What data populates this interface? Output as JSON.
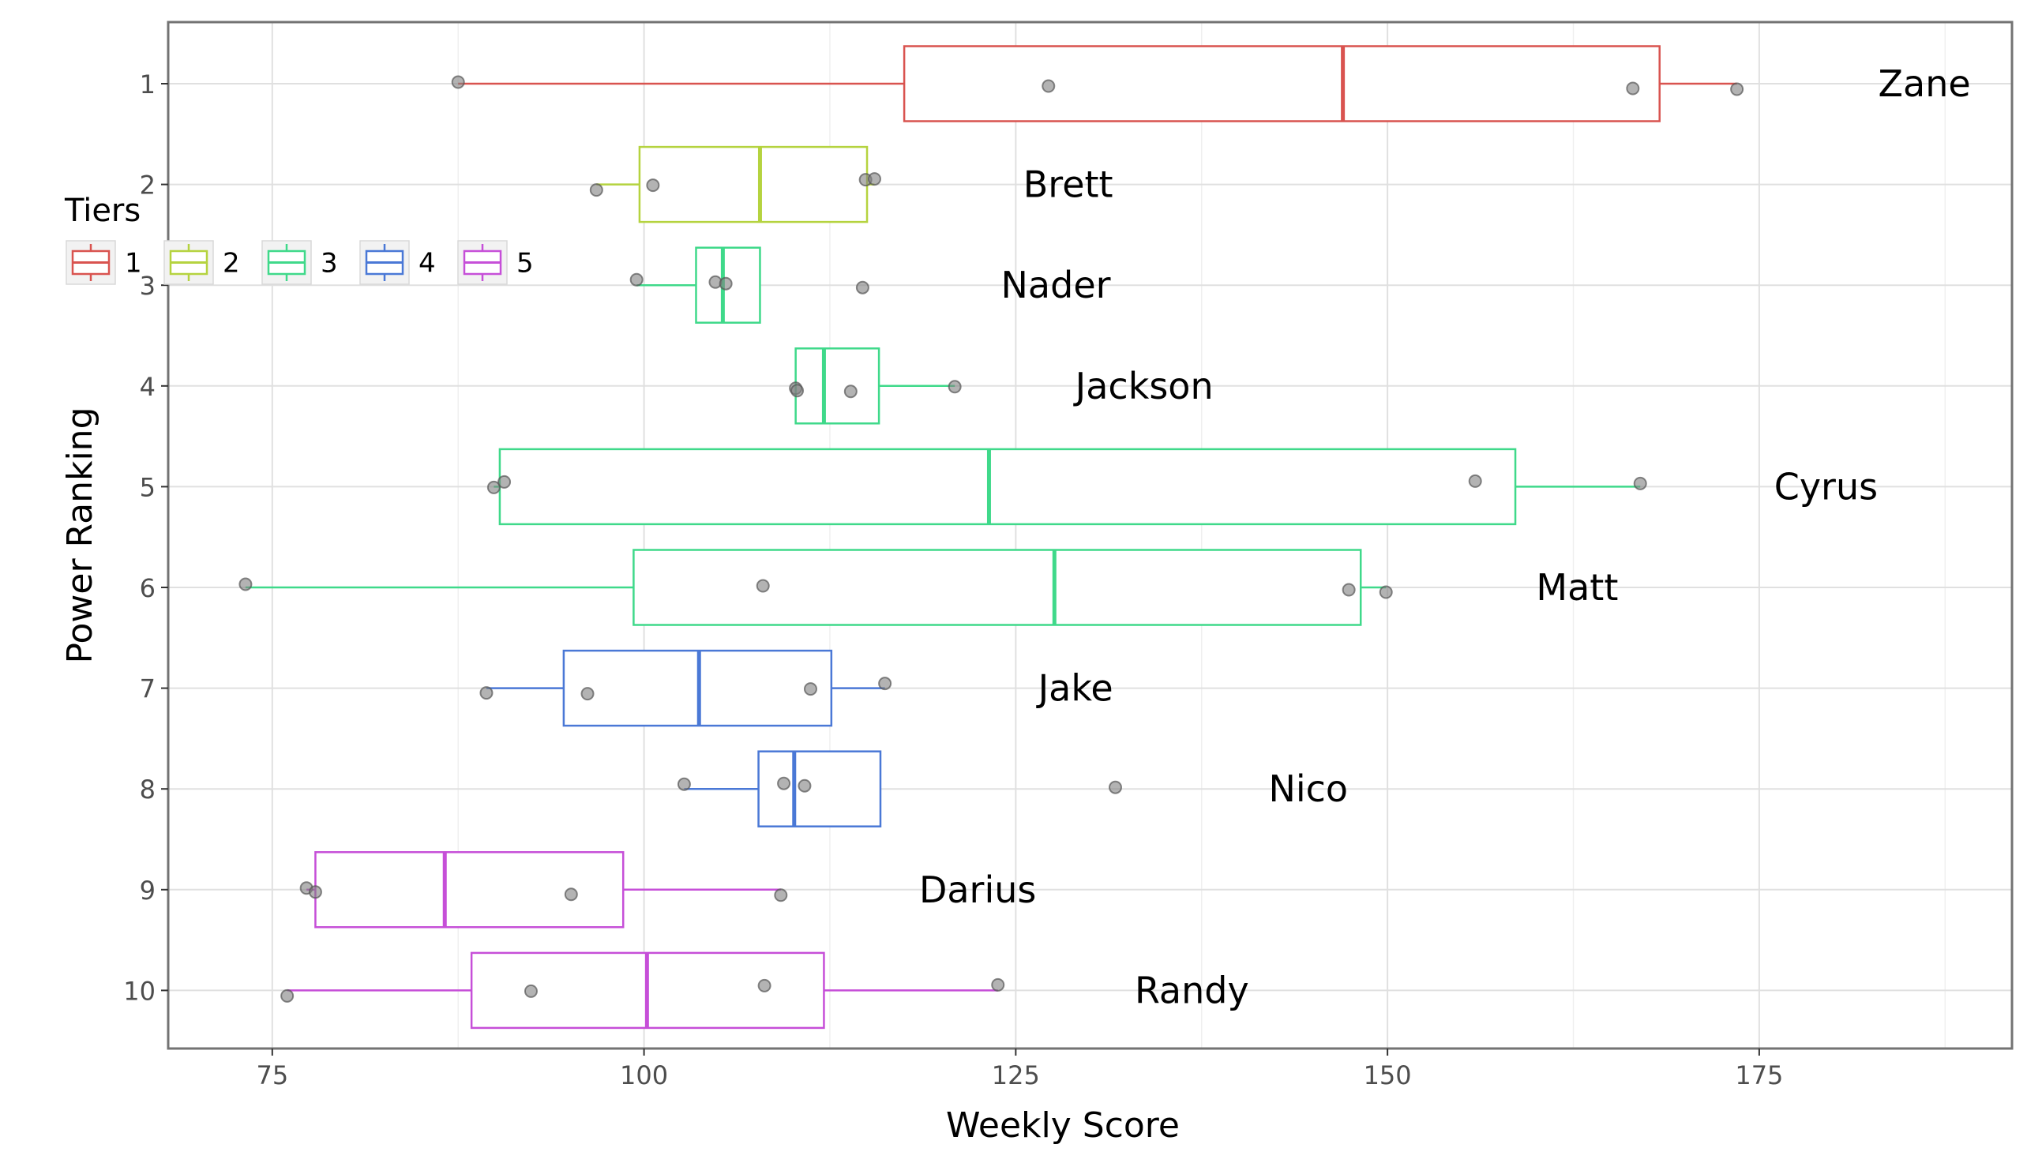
{
  "chart_data": {
    "type": "boxplot",
    "orientation": "horizontal",
    "xlabel": "Weekly Score",
    "ylabel": "Power Ranking",
    "xlim": [
      68,
      192
    ],
    "x_ticks": [
      75,
      100,
      125,
      150,
      175
    ],
    "x_tick_labels": [
      "75",
      "100",
      "125",
      "150",
      "175"
    ],
    "y_categories": [
      "1",
      "2",
      "3",
      "4",
      "5",
      "6",
      "7",
      "8",
      "9",
      "10"
    ],
    "grid": true,
    "legend": {
      "title": "Tiers",
      "position": "top-left",
      "entries": [
        {
          "label": "1",
          "color": "#d9534f"
        },
        {
          "label": "2",
          "color": "#b5d33f"
        },
        {
          "label": "3",
          "color": "#3fd98a"
        },
        {
          "label": "4",
          "color": "#4a78d6"
        },
        {
          "label": "5",
          "color": "#c64fd8"
        }
      ]
    },
    "point_color": "#808080",
    "rows": [
      {
        "rank": 1,
        "name": "Zane",
        "tier": "1",
        "whisker_low": 87.5,
        "q1": 117.5,
        "median": 147,
        "q3": 168.3,
        "whisker_high": 173.5,
        "name_x": 183,
        "points": [
          87.5,
          127.2,
          166.5,
          173.5
        ]
      },
      {
        "rank": 2,
        "name": "Brett",
        "tier": "2",
        "whisker_low": 96.8,
        "q1": 99.7,
        "median": 107.8,
        "q3": 115.0,
        "whisker_high": 115.5,
        "name_x": 125.5,
        "points": [
          96.8,
          100.6,
          114.9,
          115.5
        ]
      },
      {
        "rank": 3,
        "name": "Nader",
        "tier": "3",
        "whisker_low": 99.5,
        "q1": 103.5,
        "median": 105.3,
        "q3": 107.8,
        "whisker_high": 107.8,
        "name_x": 124,
        "points": [
          99.5,
          104.8,
          105.5,
          114.7
        ]
      },
      {
        "rank": 4,
        "name": "Jackson",
        "tier": "3",
        "whisker_low": 110.2,
        "q1": 110.2,
        "median": 112.1,
        "q3": 115.8,
        "whisker_high": 120.9,
        "name_x": 129,
        "points": [
          110.2,
          110.3,
          113.9,
          120.9
        ]
      },
      {
        "rank": 5,
        "name": "Cyrus",
        "tier": "3",
        "whisker_low": 89.9,
        "q1": 90.3,
        "median": 123.2,
        "q3": 158.6,
        "whisker_high": 167.0,
        "name_x": 176,
        "points": [
          89.9,
          90.6,
          155.9,
          167.0
        ]
      },
      {
        "rank": 6,
        "name": "Matt",
        "tier": "3",
        "whisker_low": 73.2,
        "q1": 99.3,
        "median": 127.6,
        "q3": 148.2,
        "whisker_high": 149.9,
        "name_x": 160,
        "points": [
          73.2,
          108.0,
          147.4,
          149.9
        ]
      },
      {
        "rank": 7,
        "name": "Jake",
        "tier": "4",
        "whisker_low": 89.4,
        "q1": 94.6,
        "median": 103.7,
        "q3": 112.6,
        "whisker_high": 116.2,
        "name_x": 126.5,
        "points": [
          89.4,
          96.2,
          111.2,
          116.2
        ]
      },
      {
        "rank": 8,
        "name": "Nico",
        "tier": "4",
        "whisker_low": 102.7,
        "q1": 107.7,
        "median": 110.1,
        "q3": 115.9,
        "whisker_high": 115.9,
        "name_x": 142,
        "points": [
          102.7,
          109.4,
          110.8,
          131.7
        ]
      },
      {
        "rank": 9,
        "name": "Darius",
        "tier": "5",
        "whisker_low": 77.3,
        "q1": 77.9,
        "median": 86.6,
        "q3": 98.6,
        "whisker_high": 109.2,
        "name_x": 118.5,
        "points": [
          77.3,
          77.9,
          95.1,
          109.2
        ]
      },
      {
        "rank": 10,
        "name": "Randy",
        "tier": "5",
        "whisker_low": 76.0,
        "q1": 88.4,
        "median": 100.2,
        "q3": 112.1,
        "whisker_high": 123.8,
        "name_x": 133,
        "points": [
          76.0,
          92.4,
          108.1,
          123.8
        ]
      }
    ]
  }
}
